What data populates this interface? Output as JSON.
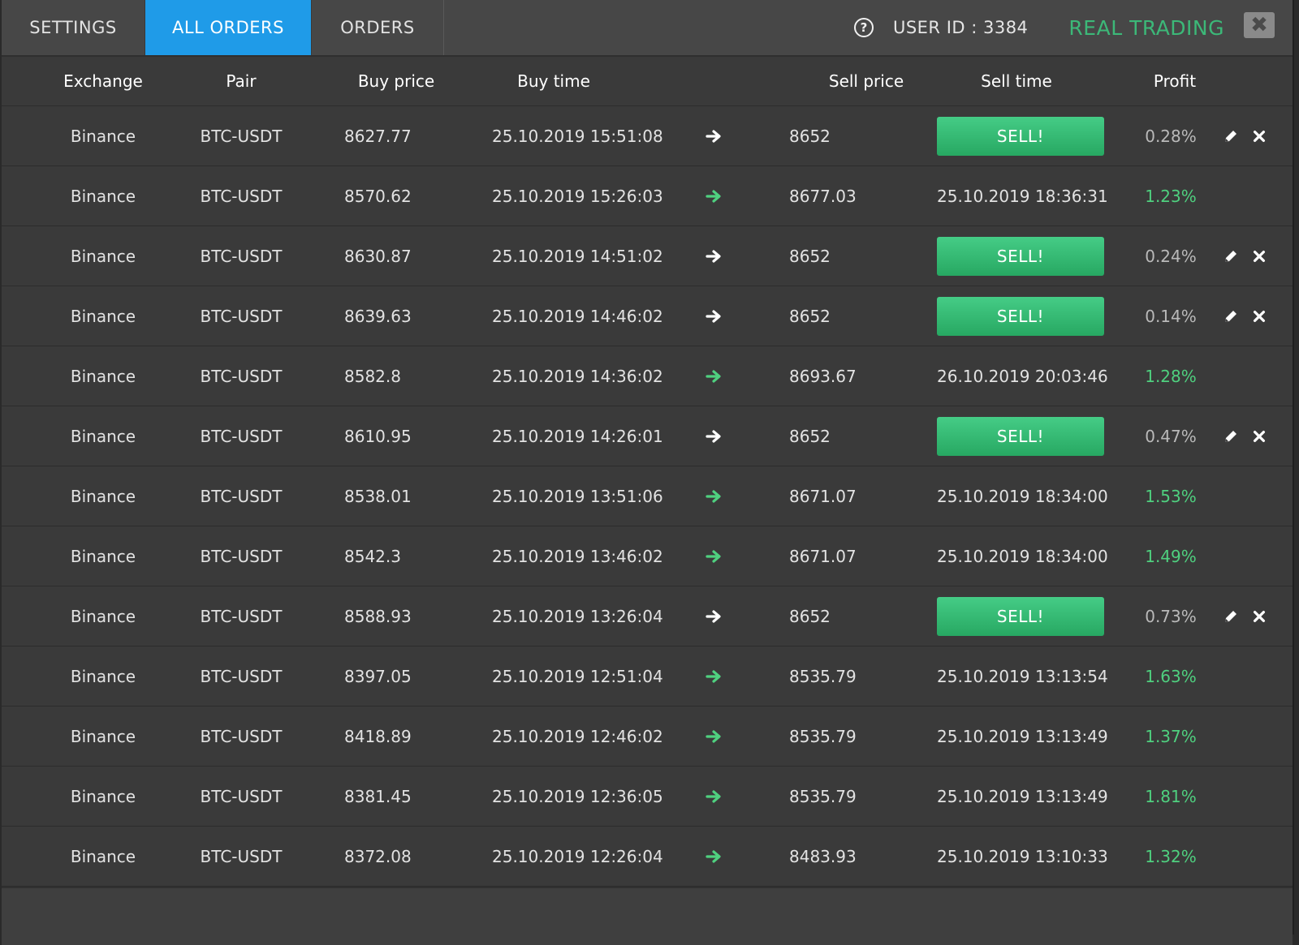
{
  "tabs": {
    "settings": "SETTINGS",
    "all_orders": "ALL ORDERS",
    "orders": "ORDERS"
  },
  "header": {
    "help_symbol": "?",
    "user_id": "USER ID : 3384",
    "mode": "REAL TRADING",
    "close_symbol": "✖"
  },
  "colors": {
    "active_tab": "#1f9be8",
    "real_trading": "#3cb878",
    "sell_button": "#2ebd72",
    "profit_positive": "#4fd07f"
  },
  "icons": {
    "help": "help-circle-icon",
    "close": "close-icon",
    "arrow": "arrow-right-icon",
    "edit": "pencil-icon",
    "delete": "x-icon"
  },
  "columns": {
    "exchange": "Exchange",
    "pair": "Pair",
    "buy_price": "Buy price",
    "buy_time": "Buy time",
    "sell_price": "Sell price",
    "sell_time": "Sell time",
    "profit": "Profit"
  },
  "sell_label": "SELL!",
  "rows": [
    {
      "exchange": "Binance",
      "pair": "BTC-USDT",
      "buy_price": "8627.77",
      "buy_time": "25.10.2019 15:51:08",
      "sell_price": "8652",
      "sell_time": "",
      "profit": "0.28%",
      "open": true
    },
    {
      "exchange": "Binance",
      "pair": "BTC-USDT",
      "buy_price": "8570.62",
      "buy_time": "25.10.2019 15:26:03",
      "sell_price": "8677.03",
      "sell_time": "25.10.2019 18:36:31",
      "profit": "1.23%",
      "open": false
    },
    {
      "exchange": "Binance",
      "pair": "BTC-USDT",
      "buy_price": "8630.87",
      "buy_time": "25.10.2019 14:51:02",
      "sell_price": "8652",
      "sell_time": "",
      "profit": "0.24%",
      "open": true
    },
    {
      "exchange": "Binance",
      "pair": "BTC-USDT",
      "buy_price": "8639.63",
      "buy_time": "25.10.2019 14:46:02",
      "sell_price": "8652",
      "sell_time": "",
      "profit": "0.14%",
      "open": true
    },
    {
      "exchange": "Binance",
      "pair": "BTC-USDT",
      "buy_price": "8582.8",
      "buy_time": "25.10.2019 14:36:02",
      "sell_price": "8693.67",
      "sell_time": "26.10.2019 20:03:46",
      "profit": "1.28%",
      "open": false
    },
    {
      "exchange": "Binance",
      "pair": "BTC-USDT",
      "buy_price": "8610.95",
      "buy_time": "25.10.2019 14:26:01",
      "sell_price": "8652",
      "sell_time": "",
      "profit": "0.47%",
      "open": true
    },
    {
      "exchange": "Binance",
      "pair": "BTC-USDT",
      "buy_price": "8538.01",
      "buy_time": "25.10.2019 13:51:06",
      "sell_price": "8671.07",
      "sell_time": "25.10.2019 18:34:00",
      "profit": "1.53%",
      "open": false
    },
    {
      "exchange": "Binance",
      "pair": "BTC-USDT",
      "buy_price": "8542.3",
      "buy_time": "25.10.2019 13:46:02",
      "sell_price": "8671.07",
      "sell_time": "25.10.2019 18:34:00",
      "profit": "1.49%",
      "open": false
    },
    {
      "exchange": "Binance",
      "pair": "BTC-USDT",
      "buy_price": "8588.93",
      "buy_time": "25.10.2019 13:26:04",
      "sell_price": "8652",
      "sell_time": "",
      "profit": "0.73%",
      "open": true
    },
    {
      "exchange": "Binance",
      "pair": "BTC-USDT",
      "buy_price": "8397.05",
      "buy_time": "25.10.2019 12:51:04",
      "sell_price": "8535.79",
      "sell_time": "25.10.2019 13:13:54",
      "profit": "1.63%",
      "open": false
    },
    {
      "exchange": "Binance",
      "pair": "BTC-USDT",
      "buy_price": "8418.89",
      "buy_time": "25.10.2019 12:46:02",
      "sell_price": "8535.79",
      "sell_time": "25.10.2019 13:13:49",
      "profit": "1.37%",
      "open": false
    },
    {
      "exchange": "Binance",
      "pair": "BTC-USDT",
      "buy_price": "8381.45",
      "buy_time": "25.10.2019 12:36:05",
      "sell_price": "8535.79",
      "sell_time": "25.10.2019 13:13:49",
      "profit": "1.81%",
      "open": false
    },
    {
      "exchange": "Binance",
      "pair": "BTC-USDT",
      "buy_price": "8372.08",
      "buy_time": "25.10.2019 12:26:04",
      "sell_price": "8483.93",
      "sell_time": "25.10.2019 13:10:33",
      "profit": "1.32%",
      "open": false
    }
  ]
}
